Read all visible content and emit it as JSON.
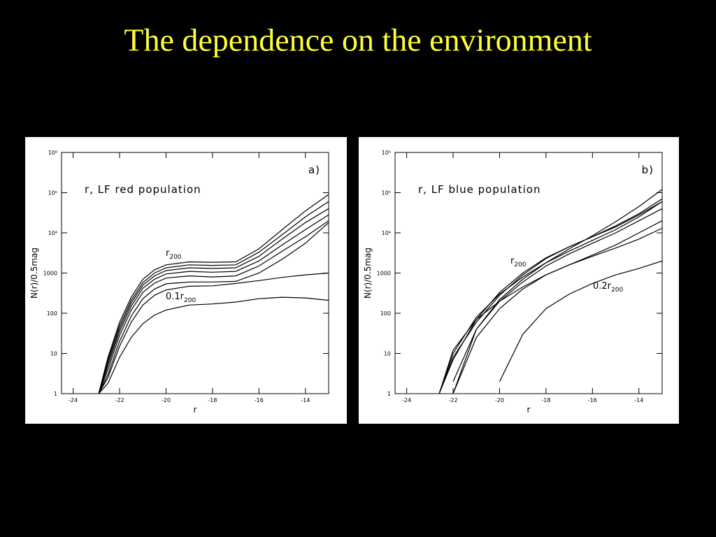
{
  "title": "The dependence on the environment",
  "chart_data": [
    {
      "type": "line",
      "panel_label": "a)",
      "annotation": "r, LF red population",
      "xlabel": "r",
      "ylabel": "N(r)/0.5mag",
      "log_y": true,
      "color": "#000000",
      "xlim": [
        -24.5,
        -13
      ],
      "ylim": [
        1,
        1000000
      ],
      "xticks": [
        -24,
        -22,
        -20,
        -18,
        -16,
        -14
      ],
      "yticks": [
        1,
        10,
        100,
        1000,
        {
          "value": 10000,
          "label": "10⁴"
        },
        {
          "value": 100000,
          "label": "10⁵"
        },
        {
          "value": 1000000,
          "label": "10⁶"
        }
      ],
      "line_labels": [
        {
          "text": "r",
          "sub": "200"
        },
        {
          "text": "0.1r",
          "sub": "200"
        }
      ],
      "x": [
        -22.9,
        -22.5,
        -22,
        -21.5,
        -21,
        -20.5,
        -20,
        -19,
        -18,
        -17,
        -16,
        -15,
        -14,
        -13
      ],
      "series": [
        {
          "values": [
            1,
            8,
            60,
            250,
            700,
            1200,
            1600,
            1900,
            1850,
            1900,
            4000,
            12000,
            35000,
            90000
          ]
        },
        {
          "values": [
            1,
            7,
            50,
            210,
            580,
            1000,
            1350,
            1600,
            1550,
            1600,
            3300,
            9000,
            25000,
            60000
          ]
        },
        {
          "values": [
            1,
            6,
            42,
            180,
            500,
            850,
            1150,
            1350,
            1300,
            1350,
            2600,
            7000,
            18000,
            40000
          ]
        },
        {
          "values": [
            1,
            5,
            35,
            150,
            420,
            700,
            950,
            1100,
            1050,
            1100,
            2000,
            5000,
            12000,
            28000
          ]
        },
        {
          "values": [
            1,
            4,
            28,
            120,
            330,
            560,
            750,
            850,
            800,
            850,
            1500,
            3500,
            8000,
            20000
          ]
        },
        {
          "values": [
            1,
            3,
            20,
            85,
            230,
            400,
            540,
            600,
            600,
            620,
            1000,
            2200,
            5500,
            18000
          ]
        },
        {
          "values": [
            1,
            2.5,
            15,
            60,
            160,
            280,
            380,
            470,
            480,
            550,
            650,
            780,
            900,
            1000
          ]
        },
        {
          "values": [
            1,
            1.8,
            8,
            25,
            55,
            90,
            120,
            160,
            170,
            190,
            230,
            250,
            240,
            210
          ]
        }
      ]
    },
    {
      "type": "line",
      "panel_label": "b)",
      "annotation": "r, LF blue population",
      "xlabel": "r",
      "ylabel": "N(r)/0.5mag",
      "log_y": true,
      "color": "#000000",
      "xlim": [
        -24.5,
        -13
      ],
      "ylim": [
        1,
        1000000
      ],
      "xticks": [
        -24,
        -22,
        -20,
        -18,
        -16,
        -14
      ],
      "yticks": [
        1,
        10,
        100,
        1000,
        {
          "value": 10000,
          "label": "10⁴"
        },
        {
          "value": 100000,
          "label": "10⁵"
        },
        {
          "value": 1000000,
          "label": "10⁶"
        }
      ],
      "line_labels": [
        {
          "text": "r",
          "sub": "200"
        },
        {
          "text": "0.2r",
          "sub": "200"
        }
      ],
      "x": [
        -22.6,
        -22,
        -21,
        -20,
        -19,
        -18,
        -17,
        -16,
        -15,
        -14,
        -13
      ],
      "series": [
        {
          "values": [
            1,
            8,
            60,
            280,
            900,
            2300,
            4500,
            8000,
            15000,
            30000,
            70000
          ]
        },
        {
          "values": [
            1,
            7,
            70,
            330,
            1000,
            2400,
            4500,
            8000,
            14000,
            28000,
            60000
          ]
        },
        {
          "values": [
            null,
            1,
            40,
            220,
            700,
            1800,
            4000,
            8500,
            19000,
            45000,
            120000
          ]
        },
        {
          "values": [
            1,
            10,
            80,
            300,
            800,
            1800,
            3500,
            6500,
            12000,
            25000,
            60000
          ]
        },
        {
          "values": [
            null,
            2,
            40,
            200,
            600,
            1500,
            3000,
            5500,
            10000,
            20000,
            40000
          ]
        },
        {
          "values": [
            1,
            12,
            70,
            200,
            450,
            900,
            1600,
            2800,
            5000,
            10000,
            20000
          ]
        },
        {
          "values": [
            null,
            1,
            25,
            130,
            400,
            900,
            1600,
            2600,
            4200,
            7000,
            13000
          ]
        },
        {
          "values": [
            null,
            null,
            null,
            2,
            30,
            130,
            300,
            550,
            900,
            1300,
            2000
          ]
        }
      ]
    }
  ]
}
